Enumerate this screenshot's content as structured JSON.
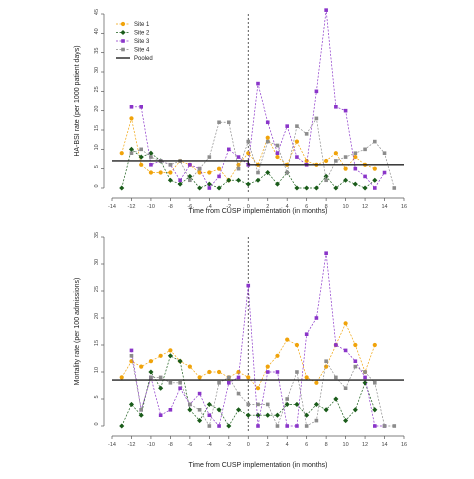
{
  "chart_data": [
    {
      "type": "line",
      "xlabel": "Time from CUSP implementation (in months)",
      "ylabel": "HA-BSI rate (per 1000 patient days)",
      "xlim": [
        -14,
        16
      ],
      "ylim": [
        0,
        45
      ],
      "xticks": [
        -14,
        -12,
        -10,
        -8,
        -6,
        -4,
        -2,
        0,
        2,
        4,
        6,
        8,
        10,
        12,
        14,
        16
      ],
      "yticks": [
        0,
        5,
        10,
        15,
        20,
        25,
        30,
        35,
        40,
        45
      ],
      "implementation_line_x": 0,
      "legend_position": "top-left",
      "series": [
        {
          "name": "Site 1",
          "color": "#f0a30a",
          "marker": "circle",
          "x": [
            -13,
            -12,
            -11,
            -10,
            -9,
            -8,
            -7,
            -6,
            -5,
            -4,
            -3,
            -2,
            -1,
            0,
            1,
            2,
            3,
            4,
            5,
            6,
            7,
            8,
            9,
            10,
            11,
            12,
            13
          ],
          "y": [
            9,
            18,
            6,
            4,
            4,
            4,
            7,
            6,
            4,
            4,
            5,
            2,
            6,
            9,
            6,
            13,
            8,
            6,
            12,
            7,
            6,
            7,
            9,
            5,
            8,
            6,
            5
          ]
        },
        {
          "name": "Site 2",
          "color": "#1a5c1a",
          "marker": "diamond",
          "x": [
            -13,
            -12,
            -11,
            -10,
            -9,
            -8,
            -7,
            -6,
            -5,
            -4,
            -3,
            -2,
            -1,
            0,
            1,
            2,
            3,
            4,
            5,
            6,
            7,
            8,
            9,
            10,
            11,
            12,
            13
          ],
          "y": [
            0,
            10,
            8,
            9,
            7,
            2,
            1,
            3,
            0,
            1,
            0,
            2,
            2,
            1,
            2,
            4,
            1,
            4,
            0,
            0,
            0,
            3,
            0,
            2,
            1,
            0,
            2
          ]
        },
        {
          "name": "Site 3",
          "color": "#8a35c9",
          "marker": "square",
          "x": [
            -12,
            -11,
            -10,
            -9,
            -8,
            -7,
            -6,
            -5,
            -4,
            -3,
            -2,
            -1,
            0,
            1,
            2,
            3,
            4,
            5,
            6,
            7,
            8,
            9,
            10,
            11,
            12,
            13,
            14
          ],
          "y": [
            21,
            21,
            6,
            7,
            6,
            2,
            6,
            5,
            0,
            3,
            10,
            8,
            6,
            27,
            17,
            9,
            16,
            8,
            6,
            25,
            46,
            21,
            20,
            5,
            3,
            0,
            4
          ]
        },
        {
          "name": "Site 4",
          "color": "#8c8c8c",
          "marker": "square",
          "x": [
            -12,
            -11,
            -10,
            -9,
            -8,
            -7,
            -6,
            -5,
            -4,
            -3,
            -2,
            -1,
            0,
            1,
            2,
            3,
            4,
            5,
            6,
            7,
            8,
            9,
            10,
            11,
            12,
            13,
            14,
            15
          ],
          "y": [
            9,
            10,
            8,
            7,
            6,
            7,
            2,
            5,
            8,
            17,
            17,
            5,
            12,
            4,
            12,
            11,
            4,
            16,
            14,
            18,
            2,
            7,
            8,
            9,
            10,
            12,
            9,
            0
          ]
        },
        {
          "name": "Pooled",
          "color": "#222222",
          "marker": "none",
          "x": [
            -14,
            0,
            0,
            16
          ],
          "y": [
            7,
            7,
            6,
            6
          ]
        }
      ]
    },
    {
      "type": "line",
      "xlabel": "Time from CUSP implementation (in months)",
      "ylabel": "Mortality rate (per 100 admissions)",
      "xlim": [
        -14,
        16
      ],
      "ylim": [
        0,
        35
      ],
      "xticks": [
        -14,
        -12,
        -10,
        -8,
        -6,
        -4,
        -2,
        0,
        2,
        4,
        6,
        8,
        10,
        12,
        14,
        16
      ],
      "yticks": [
        0,
        5,
        10,
        15,
        20,
        25,
        30,
        35
      ],
      "implementation_line_x": 0,
      "series": [
        {
          "name": "Site 1",
          "color": "#f0a30a",
          "marker": "circle",
          "x": [
            -13,
            -12,
            -11,
            -10,
            -9,
            -8,
            -7,
            -6,
            -5,
            -4,
            -3,
            -2,
            -1,
            0,
            1,
            2,
            3,
            4,
            5,
            6,
            7,
            8,
            9,
            10,
            11,
            12,
            13
          ],
          "y": [
            9,
            12,
            11,
            12,
            13,
            14,
            12,
            11,
            9,
            10,
            10,
            9,
            10,
            9,
            7,
            11,
            13,
            16,
            15,
            9,
            8,
            11,
            15,
            19,
            15,
            10,
            15
          ]
        },
        {
          "name": "Site 2",
          "color": "#1a5c1a",
          "marker": "diamond",
          "x": [
            -13,
            -12,
            -11,
            -10,
            -9,
            -8,
            -7,
            -6,
            -5,
            -4,
            -3,
            -2,
            -1,
            0,
            1,
            2,
            3,
            4,
            5,
            6,
            7,
            8,
            9,
            10,
            11,
            12,
            13
          ],
          "y": [
            0,
            4,
            2,
            10,
            7,
            13,
            12,
            3,
            1,
            4,
            3,
            0,
            3,
            2,
            2,
            2,
            2,
            4,
            4,
            2,
            4,
            3,
            5,
            1,
            3,
            8,
            3
          ]
        },
        {
          "name": "Site 3",
          "color": "#8a35c9",
          "marker": "square",
          "x": [
            -12,
            -11,
            -10,
            -9,
            -8,
            -7,
            -6,
            -5,
            -4,
            -3,
            -2,
            -1,
            0,
            1,
            2,
            3,
            4,
            5,
            6,
            7,
            8,
            9,
            10,
            11,
            12,
            13,
            14
          ],
          "y": [
            14,
            3,
            9,
            2,
            3,
            7,
            4,
            6,
            2,
            0,
            8,
            9,
            26,
            0,
            10,
            10,
            0,
            0,
            17,
            20,
            32,
            15,
            14,
            12,
            9,
            0,
            0
          ]
        },
        {
          "name": "Site 4",
          "color": "#8c8c8c",
          "marker": "square",
          "x": [
            -12,
            -11,
            -10,
            -9,
            -8,
            -7,
            -6,
            -5,
            -4,
            -3,
            -2,
            -1,
            0,
            1,
            2,
            3,
            4,
            5,
            6,
            7,
            8,
            9,
            10,
            11,
            12,
            13,
            14,
            15
          ],
          "y": [
            13,
            3,
            9,
            9,
            8,
            8,
            4,
            3,
            0,
            8,
            9,
            6,
            4,
            4,
            4,
            0,
            5,
            10,
            0,
            1,
            12,
            9,
            7,
            11,
            10,
            8,
            0,
            0
          ]
        },
        {
          "name": "Pooled",
          "color": "#222222",
          "marker": "none",
          "x": [
            -14,
            16
          ],
          "y": [
            8.5,
            8.5
          ]
        }
      ]
    }
  ]
}
